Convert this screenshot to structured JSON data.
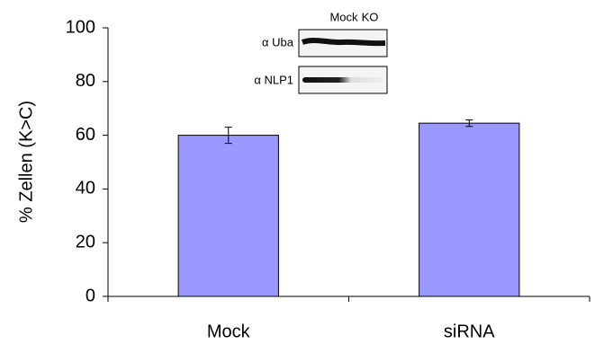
{
  "chart_data": {
    "type": "bar",
    "ylabel": "% Zellen (K>C)",
    "categories": [
      "Mock",
      "siRNA"
    ],
    "values": [
      60,
      64.5
    ],
    "errors": [
      3,
      1.2
    ],
    "color": "#9999ff",
    "ylim": [
      0,
      100
    ],
    "yticks": [
      0,
      20,
      40,
      60,
      80,
      100
    ],
    "inset": {
      "lanes": [
        "Mock",
        "KO"
      ],
      "blots": [
        "α Uba",
        "α NLP1"
      ]
    }
  }
}
